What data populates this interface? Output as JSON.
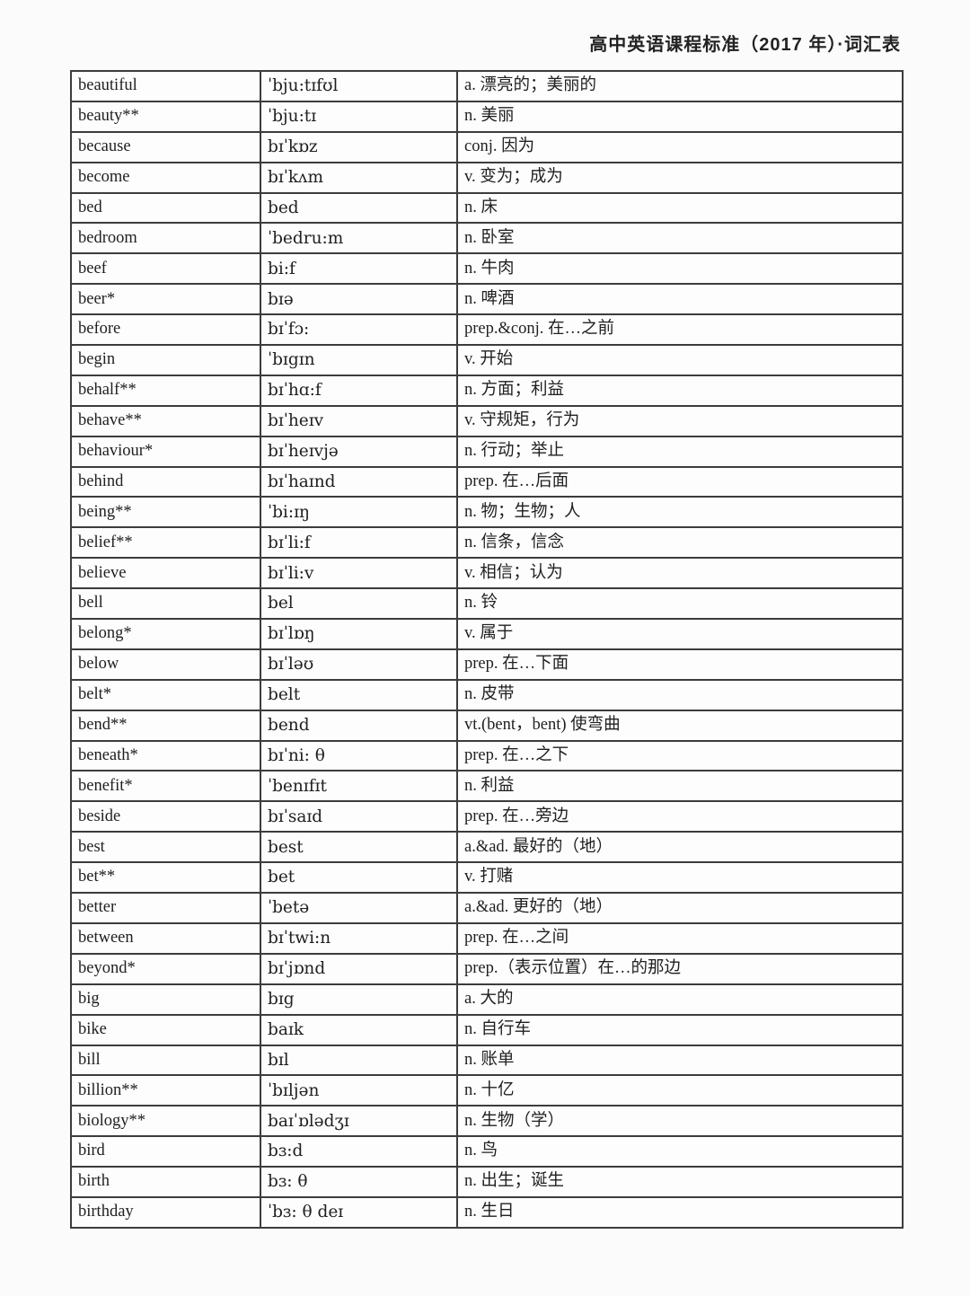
{
  "page": {
    "header": "高中英语课程标准（2017 年）·词汇表",
    "ink_color": "#1f1f1f",
    "border_color": "#3c3c3c",
    "background_color": "#fbfbfb"
  },
  "table": {
    "columns": [
      "word",
      "phonetic",
      "meaning"
    ],
    "rows": [
      {
        "word": "beautiful",
        "phonetic": "ˈbju:tɪfʊl",
        "meaning": "a. 漂亮的；美丽的"
      },
      {
        "word": "beauty**",
        "phonetic": "ˈbju:tɪ",
        "meaning": "n. 美丽"
      },
      {
        "word": "because",
        "phonetic": "bɪˈkɒz",
        "meaning": "conj. 因为"
      },
      {
        "word": "become",
        "phonetic": "bɪˈkʌm",
        "meaning": "v. 变为；成为"
      },
      {
        "word": "bed",
        "phonetic": "bed",
        "meaning": "n. 床"
      },
      {
        "word": "bedroom",
        "phonetic": "ˈbedru:m",
        "meaning": "n. 卧室"
      },
      {
        "word": "beef",
        "phonetic": "bi:f",
        "meaning": "n. 牛肉"
      },
      {
        "word": "beer*",
        "phonetic": "bɪə",
        "meaning": "n. 啤酒"
      },
      {
        "word": "before",
        "phonetic": "bɪˈfɔ:",
        "meaning": "prep.&conj. 在…之前"
      },
      {
        "word": "begin",
        "phonetic": "ˈbɪgɪn",
        "meaning": "v. 开始"
      },
      {
        "word": "behalf**",
        "phonetic": "bɪˈhɑ:f",
        "meaning": "n. 方面；利益"
      },
      {
        "word": "behave**",
        "phonetic": "bɪˈheɪv",
        "meaning": "v. 守规矩，行为"
      },
      {
        "word": "behaviour*",
        "phonetic": "bɪˈheɪvjə",
        "meaning": "n. 行动；举止"
      },
      {
        "word": "behind",
        "phonetic": "bɪˈhaɪnd",
        "meaning": "prep. 在…后面"
      },
      {
        "word": "being**",
        "phonetic": "ˈbi:ɪŋ",
        "meaning": "n. 物；生物；人"
      },
      {
        "word": "belief**",
        "phonetic": "bɪˈli:f",
        "meaning": "n. 信条，信念"
      },
      {
        "word": "believe",
        "phonetic": "bɪˈli:v",
        "meaning": "v. 相信；认为"
      },
      {
        "word": "bell",
        "phonetic": "bel",
        "meaning": "n. 铃"
      },
      {
        "word": "belong*",
        "phonetic": "bɪˈlɒŋ",
        "meaning": "v. 属于"
      },
      {
        "word": "below",
        "phonetic": "bɪˈləʊ",
        "meaning": "prep. 在…下面"
      },
      {
        "word": "belt*",
        "phonetic": "belt",
        "meaning": "n. 皮带"
      },
      {
        "word": "bend**",
        "phonetic": "bend",
        "meaning": "vt.(bent，bent) 使弯曲"
      },
      {
        "word": "beneath*",
        "phonetic": "bɪˈni: θ",
        "meaning": "prep. 在…之下"
      },
      {
        "word": "benefit*",
        "phonetic": "ˈbenɪfɪt",
        "meaning": "n. 利益"
      },
      {
        "word": "beside",
        "phonetic": "bɪˈsaɪd",
        "meaning": "prep. 在…旁边"
      },
      {
        "word": "best",
        "phonetic": "best",
        "meaning": "a.&ad. 最好的（地）"
      },
      {
        "word": "bet**",
        "phonetic": "bet",
        "meaning": "v. 打赌"
      },
      {
        "word": "better",
        "phonetic": "ˈbetə",
        "meaning": "a.&ad. 更好的（地）"
      },
      {
        "word": "between",
        "phonetic": "bɪˈtwi:n",
        "meaning": "prep. 在…之间"
      },
      {
        "word": "beyond*",
        "phonetic": "bɪˈjɒnd",
        "meaning": "prep.（表示位置）在…的那边"
      },
      {
        "word": "big",
        "phonetic": "bɪg",
        "meaning": "a. 大的"
      },
      {
        "word": "bike",
        "phonetic": "baɪk",
        "meaning": "n. 自行车"
      },
      {
        "word": "bill",
        "phonetic": "bɪl",
        "meaning": "n. 账单"
      },
      {
        "word": "billion**",
        "phonetic": "ˈbɪljən",
        "meaning": "n. 十亿"
      },
      {
        "word": "biology**",
        "phonetic": "baɪˈɒlədʒɪ",
        "meaning": "n. 生物（学）"
      },
      {
        "word": "bird",
        "phonetic": "bɜ:d",
        "meaning": "n. 鸟"
      },
      {
        "word": "birth",
        "phonetic": "bɜ: θ",
        "meaning": "n. 出生；诞生"
      },
      {
        "word": "birthday",
        "phonetic": "ˈbɜ: θ deɪ",
        "meaning": "n. 生日"
      }
    ]
  }
}
